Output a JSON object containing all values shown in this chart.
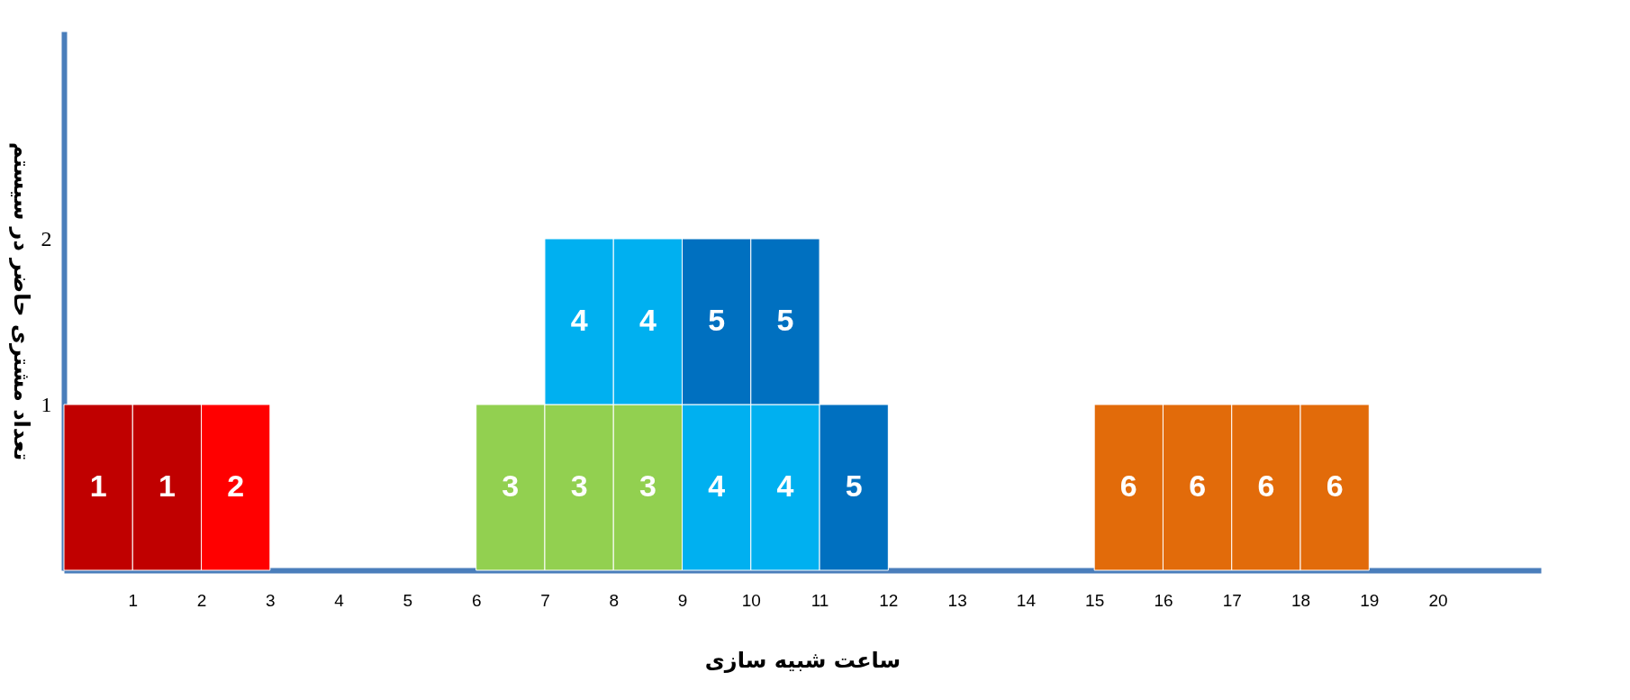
{
  "chart_data": {
    "type": "bar",
    "stacked": true,
    "xlabel": "ساعت شبیه سازی",
    "ylabel": "تعداد مشتری حاضر در سیستم",
    "xlim": [
      0,
      21.5
    ],
    "xticks": [
      1,
      2,
      3,
      4,
      5,
      6,
      7,
      8,
      9,
      10,
      11,
      12,
      13,
      14,
      15,
      16,
      17,
      18,
      19,
      20
    ],
    "ylim": [
      0,
      3.25
    ],
    "yticks": [
      1,
      2
    ],
    "x": [
      0.5,
      1.5,
      2.5,
      6.5,
      7.5,
      8.5,
      9.5,
      10.5,
      11.5,
      15.5,
      16.5,
      17.5,
      18.5
    ],
    "series": [
      {
        "name": "1",
        "color": "#c00000",
        "values": [
          1,
          1,
          null,
          null,
          null,
          null,
          null,
          null,
          null,
          null,
          null,
          null,
          null
        ]
      },
      {
        "name": "2",
        "color": "#ff0000",
        "values": [
          null,
          null,
          1,
          null,
          null,
          null,
          null,
          null,
          null,
          null,
          null,
          null,
          null
        ]
      },
      {
        "name": "3",
        "color": "#92d050",
        "values": [
          null,
          null,
          null,
          1,
          1,
          1,
          null,
          null,
          null,
          null,
          null,
          null,
          null
        ]
      },
      {
        "name": "4",
        "color": "#00b0f0",
        "values": [
          null,
          null,
          null,
          null,
          1,
          1,
          1,
          1,
          null,
          null,
          null,
          null,
          null
        ]
      },
      {
        "name": "5",
        "color": "#0070c0",
        "values": [
          null,
          null,
          null,
          null,
          null,
          null,
          1,
          1,
          1,
          null,
          null,
          null,
          null
        ]
      },
      {
        "name": "6",
        "color": "#e26b0a",
        "values": [
          null,
          null,
          null,
          null,
          null,
          null,
          null,
          null,
          null,
          1,
          1,
          1,
          1
        ]
      }
    ]
  }
}
